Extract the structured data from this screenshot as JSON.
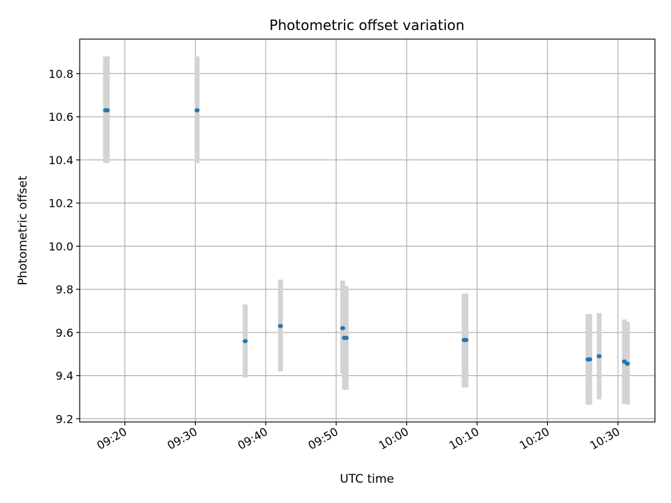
{
  "chart_data": {
    "type": "scatter",
    "title": "Photometric offset variation",
    "xlabel": "UTC time",
    "ylabel": "Photometric offset",
    "xlim": [
      "09:13:35",
      "10:35:15"
    ],
    "ylim": [
      9.185,
      10.96
    ],
    "x_ticks": [
      "09:20",
      "09:30",
      "09:40",
      "09:50",
      "10:00",
      "10:10",
      "10:20",
      "10:30"
    ],
    "y_ticks": [
      "9.2",
      "9.4",
      "9.6",
      "9.8",
      "10.0",
      "10.2",
      "10.4",
      "10.6",
      "10.8"
    ],
    "grid": true,
    "colors": {
      "marker": "#1f77b4",
      "errorbar": "#d3d3d3",
      "grid": "#b0b0b0"
    },
    "points": [
      {
        "x": "09:17:15",
        "y": 10.63,
        "lower": 10.385,
        "upper": 10.88
      },
      {
        "x": "09:17:30",
        "y": 10.63,
        "lower": 10.385,
        "upper": 10.88
      },
      {
        "x": "09:30:15",
        "y": 10.63,
        "lower": 10.385,
        "upper": 10.88
      },
      {
        "x": "09:37:05",
        "y": 9.56,
        "lower": 9.39,
        "upper": 9.73
      },
      {
        "x": "09:42:05",
        "y": 9.63,
        "lower": 9.42,
        "upper": 9.845
      },
      {
        "x": "09:50:55",
        "y": 9.62,
        "lower": 9.41,
        "upper": 9.84
      },
      {
        "x": "09:51:10",
        "y": 9.575,
        "lower": 9.335,
        "upper": 9.815
      },
      {
        "x": "09:51:25",
        "y": 9.575,
        "lower": 9.335,
        "upper": 9.815
      },
      {
        "x": "10:08:10",
        "y": 9.565,
        "lower": 9.345,
        "upper": 9.78
      },
      {
        "x": "10:08:25",
        "y": 9.565,
        "lower": 9.345,
        "upper": 9.78
      },
      {
        "x": "10:25:45",
        "y": 9.475,
        "lower": 9.265,
        "upper": 9.685
      },
      {
        "x": "10:26:00",
        "y": 9.475,
        "lower": 9.265,
        "upper": 9.685
      },
      {
        "x": "10:27:20",
        "y": 9.49,
        "lower": 9.29,
        "upper": 9.69
      },
      {
        "x": "10:30:55",
        "y": 9.465,
        "lower": 9.27,
        "upper": 9.66
      },
      {
        "x": "10:31:20",
        "y": 9.455,
        "lower": 9.265,
        "upper": 9.65
      }
    ]
  }
}
